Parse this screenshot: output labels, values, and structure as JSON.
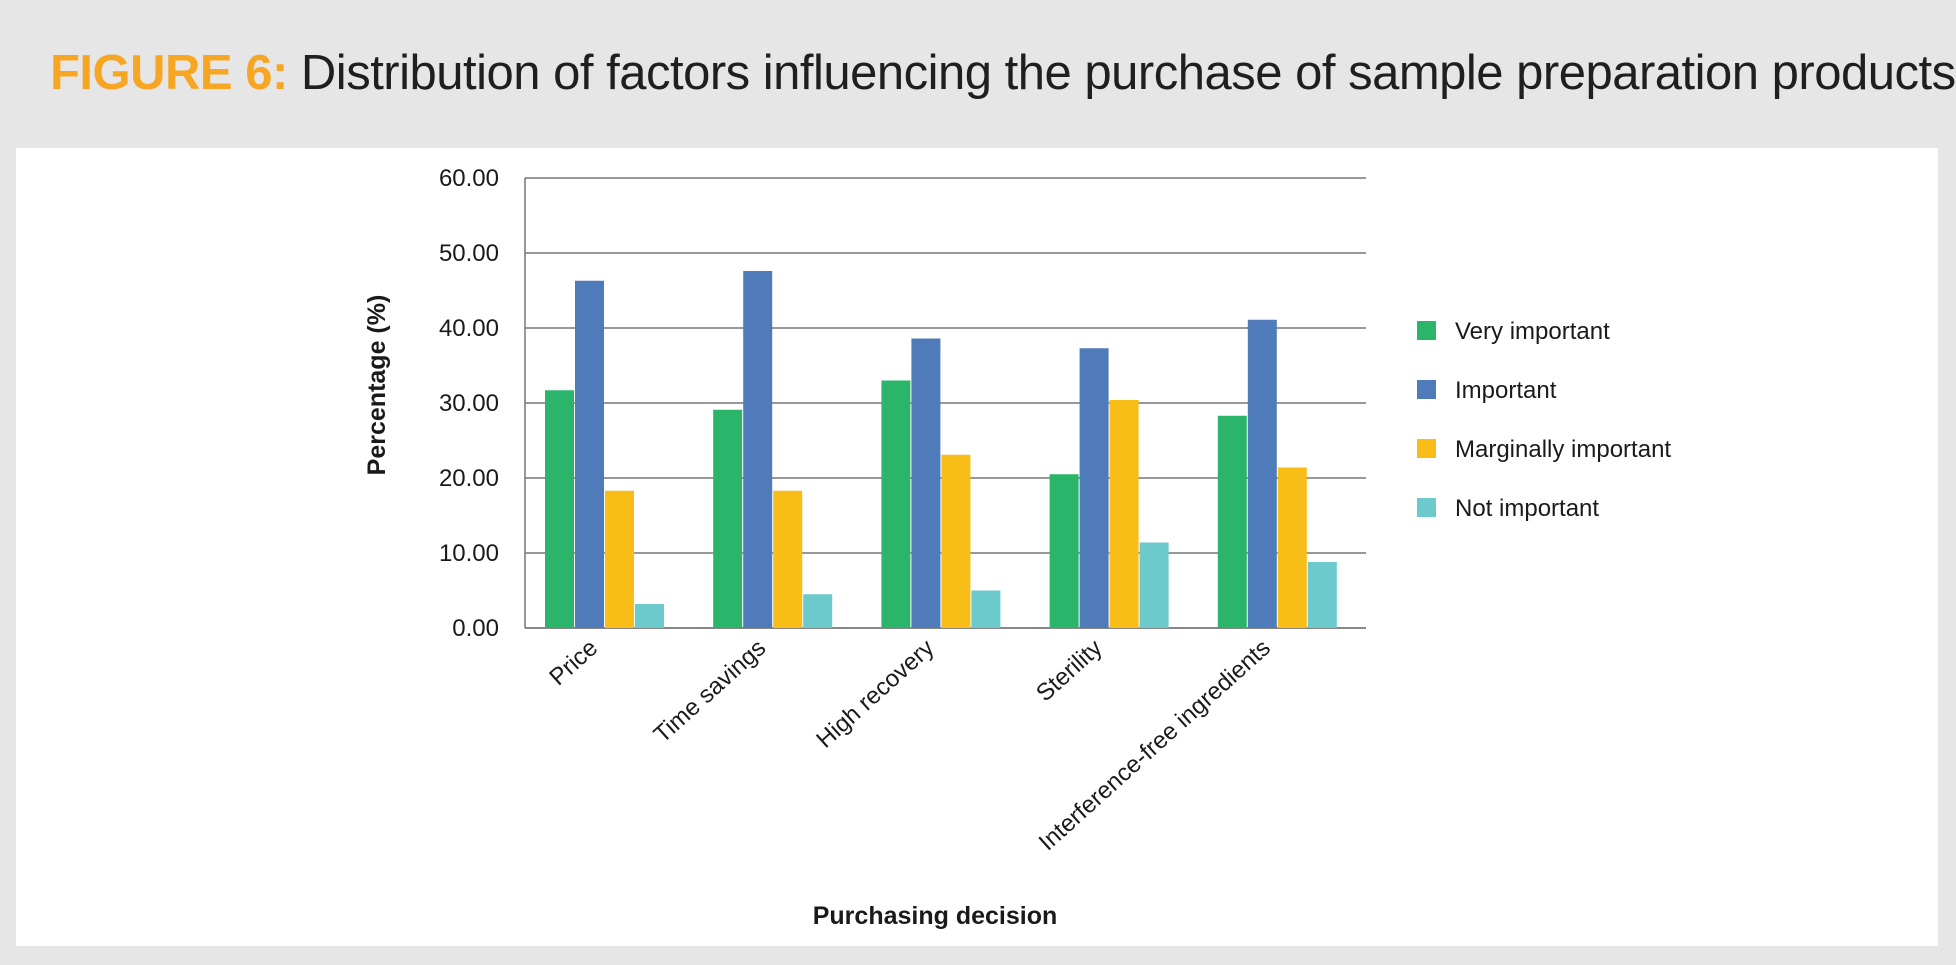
{
  "figure": {
    "label": "FIGURE 6:",
    "caption": "Distribution of factors influencing the purchase of sample preparation products."
  },
  "chart_data": {
    "type": "bar",
    "title": "Distribution of factors influencing the purchase of sample preparation products.",
    "xlabel": "Purchasing decision",
    "ylabel": "Percentage (%)",
    "ylim": [
      0,
      60
    ],
    "yticks": [
      0,
      10,
      20,
      30,
      40,
      50,
      60
    ],
    "ytick_labels": [
      "0.00",
      "10.00",
      "20.00",
      "30.00",
      "40.00",
      "50.00",
      "60.00"
    ],
    "grid": true,
    "legend_position": "right",
    "categories": [
      "Price",
      "Time savings",
      "High recovery",
      "Sterility",
      "Interference-free ingredients"
    ],
    "series": [
      {
        "name": "Very important",
        "color": "#2bb56a",
        "values": [
          31.7,
          29.1,
          33.0,
          20.5,
          28.3
        ]
      },
      {
        "name": "Important",
        "color": "#4f7bba",
        "values": [
          46.3,
          47.6,
          38.6,
          37.3,
          41.1
        ]
      },
      {
        "name": "Marginally important",
        "color": "#f8bd17",
        "values": [
          18.3,
          18.3,
          23.1,
          30.4,
          21.4
        ]
      },
      {
        "name": "Not important",
        "color": "#6cc9cc",
        "values": [
          3.2,
          4.5,
          5.0,
          11.4,
          8.8
        ]
      }
    ]
  }
}
